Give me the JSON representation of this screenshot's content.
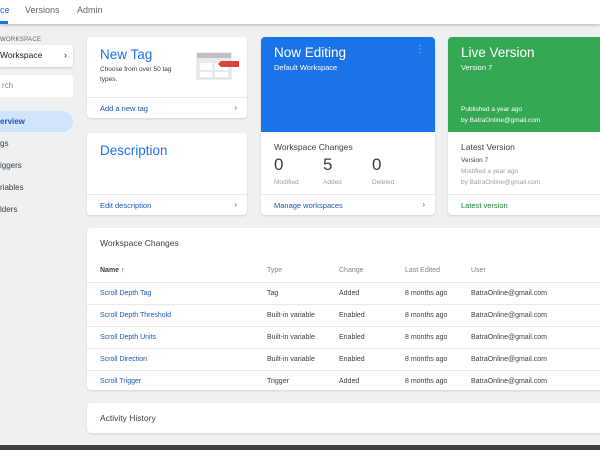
{
  "tabs": [
    {
      "label": "ce",
      "active": true
    },
    {
      "label": "Versions"
    },
    {
      "label": "Admin"
    }
  ],
  "sidebar": {
    "workspace_label": "WORKSPACE",
    "workspace_name": "Workspace",
    "search_placeholder": "rch",
    "items": [
      {
        "label": "erview",
        "active": true
      },
      {
        "label": "gs"
      },
      {
        "label": "iggers"
      },
      {
        "label": "riables"
      },
      {
        "label": "lders"
      }
    ]
  },
  "new_tag": {
    "title": "New Tag",
    "desc": "Choose from over 50 tag types.",
    "link": "Add a new tag",
    "icon": "tag-template-icon"
  },
  "description": {
    "title": "Description",
    "link": "Edit description"
  },
  "now_editing": {
    "title": "Now Editing",
    "subtitle": "Default Workspace",
    "changes_title": "Workspace Changes",
    "stats": [
      {
        "value": "0",
        "label": "Modified"
      },
      {
        "value": "5",
        "label": "Added"
      },
      {
        "value": "0",
        "label": "Deleted"
      }
    ],
    "link": "Manage workspaces",
    "color": "#1a73e8"
  },
  "live_version": {
    "title": "Live Version",
    "subtitle": "Version 7",
    "published": "Published a year ago",
    "by": "by BatraOnline@gmail.com",
    "latest_title": "Latest Version",
    "latest_version": "Version 7",
    "latest_modified": "Modified a year ago",
    "latest_by": "by BatraOnline@gmail.com",
    "link": "Latest version",
    "color": "#34a853"
  },
  "changes_table": {
    "title": "Workspace Changes",
    "columns": [
      "Name ↑",
      "Type",
      "Change",
      "Last Edited",
      "User"
    ],
    "rows": [
      [
        "Scroll Depth Tag",
        "Tag",
        "Added",
        "8 months ago",
        "BatraOnline@gmail.com"
      ],
      [
        "Scroll Depth Threshold",
        "Built-in variable",
        "Enabled",
        "8 months ago",
        "BatraOnline@gmail.com"
      ],
      [
        "Scroll Depth Units",
        "Built-in variable",
        "Enabled",
        "8 months ago",
        "BatraOnline@gmail.com"
      ],
      [
        "Scroll Direction",
        "Built-in variable",
        "Enabled",
        "8 months ago",
        "BatraOnline@gmail.com"
      ],
      [
        "Scroll Trigger",
        "Trigger",
        "Added",
        "8 months ago",
        "BatraOnline@gmail.com"
      ]
    ]
  },
  "activity": {
    "title": "Activity History"
  }
}
